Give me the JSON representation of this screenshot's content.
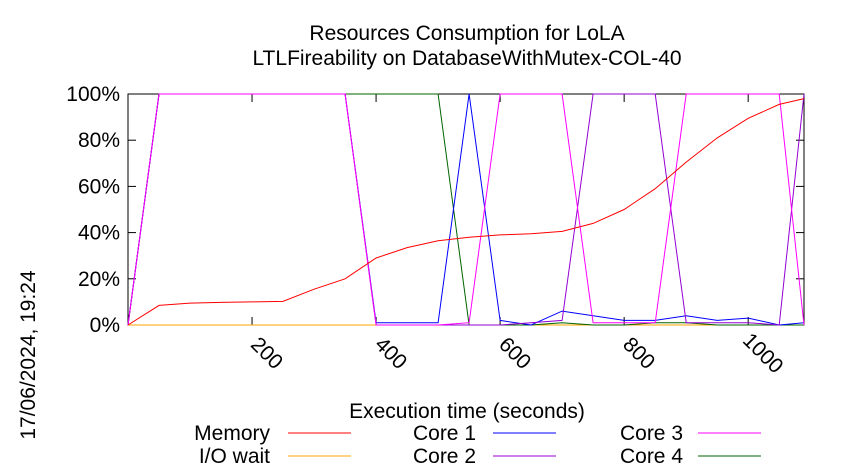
{
  "chart_data": {
    "type": "line",
    "title": "Resources Consumption for LoLA",
    "subtitle": "LTLFireability on DatabaseWithMutex-COL-40",
    "xlabel": "Execution time (seconds)",
    "ylabel": "",
    "side_label": "17/06/2024, 19:24",
    "xlim": [
      0,
      1090
    ],
    "ylim": [
      0,
      100
    ],
    "x_ticks": [
      200,
      400,
      600,
      800,
      1000
    ],
    "x_tick_labels": [
      "200",
      "400",
      "600",
      "800",
      "1000"
    ],
    "y_ticks": [
      0,
      20,
      40,
      60,
      80,
      100
    ],
    "y_tick_labels": [
      "0%",
      "20%",
      "40%",
      "60%",
      "80%",
      "100%"
    ],
    "grid": false,
    "legend_position": "bottom",
    "series": [
      {
        "name": "Memory",
        "color": "#ff0000",
        "points": [
          [
            0,
            0
          ],
          [
            50,
            8.5
          ],
          [
            100,
            9.5
          ],
          [
            150,
            9.8
          ],
          [
            200,
            10
          ],
          [
            250,
            10.2
          ],
          [
            300,
            15.5
          ],
          [
            350,
            20
          ],
          [
            400,
            29
          ],
          [
            450,
            33.5
          ],
          [
            500,
            36.5
          ],
          [
            550,
            38
          ],
          [
            600,
            39
          ],
          [
            650,
            39.5
          ],
          [
            700,
            40.5
          ],
          [
            750,
            44
          ],
          [
            800,
            50
          ],
          [
            850,
            59
          ],
          [
            900,
            70.5
          ],
          [
            950,
            81
          ],
          [
            1000,
            89.5
          ],
          [
            1050,
            95.5
          ],
          [
            1090,
            98
          ]
        ]
      },
      {
        "name": "I/O wait",
        "color": "#ffa500",
        "points": [
          [
            0,
            0
          ],
          [
            1090,
            0
          ]
        ]
      },
      {
        "name": "Core 1",
        "color": "#0000ff",
        "points": [
          [
            0,
            0
          ],
          [
            50,
            100
          ],
          [
            100,
            100
          ],
          [
            150,
            100
          ],
          [
            200,
            100
          ],
          [
            250,
            100
          ],
          [
            300,
            100
          ],
          [
            350,
            100
          ],
          [
            400,
            1
          ],
          [
            450,
            1
          ],
          [
            500,
            1
          ],
          [
            550,
            100
          ],
          [
            600,
            2
          ],
          [
            650,
            0
          ],
          [
            700,
            6
          ],
          [
            750,
            4
          ],
          [
            800,
            2
          ],
          [
            850,
            2
          ],
          [
            900,
            4
          ],
          [
            950,
            2
          ],
          [
            1000,
            3
          ],
          [
            1050,
            0
          ],
          [
            1090,
            1
          ]
        ]
      },
      {
        "name": "Core 2",
        "color": "#9400d3",
        "points": [
          [
            0,
            0
          ],
          [
            50,
            100
          ],
          [
            100,
            100
          ],
          [
            150,
            100
          ],
          [
            200,
            100
          ],
          [
            250,
            100
          ],
          [
            300,
            100
          ],
          [
            350,
            100
          ],
          [
            400,
            0
          ],
          [
            450,
            0
          ],
          [
            500,
            0
          ],
          [
            550,
            0
          ],
          [
            600,
            0
          ],
          [
            650,
            1
          ],
          [
            700,
            2
          ],
          [
            750,
            100
          ],
          [
            800,
            100
          ],
          [
            850,
            100
          ],
          [
            900,
            1
          ],
          [
            950,
            1
          ],
          [
            1000,
            1
          ],
          [
            1050,
            0
          ],
          [
            1090,
            100
          ]
        ]
      },
      {
        "name": "Core 3",
        "color": "#ff00ff",
        "points": [
          [
            0,
            0
          ],
          [
            50,
            100
          ],
          [
            100,
            100
          ],
          [
            150,
            100
          ],
          [
            200,
            100
          ],
          [
            250,
            100
          ],
          [
            300,
            100
          ],
          [
            350,
            100
          ],
          [
            400,
            0
          ],
          [
            450,
            0
          ],
          [
            500,
            0
          ],
          [
            550,
            1
          ],
          [
            600,
            100
          ],
          [
            650,
            100
          ],
          [
            700,
            100
          ],
          [
            750,
            1
          ],
          [
            800,
            1
          ],
          [
            850,
            1
          ],
          [
            900,
            100
          ],
          [
            950,
            100
          ],
          [
            1000,
            100
          ],
          [
            1050,
            100
          ],
          [
            1090,
            0
          ]
        ]
      },
      {
        "name": "Core 4",
        "color": "#006400",
        "points": [
          [
            0,
            0
          ],
          [
            50,
            100
          ],
          [
            100,
            100
          ],
          [
            150,
            100
          ],
          [
            200,
            100
          ],
          [
            250,
            100
          ],
          [
            300,
            100
          ],
          [
            350,
            100
          ],
          [
            400,
            100
          ],
          [
            450,
            100
          ],
          [
            500,
            100
          ],
          [
            550,
            0
          ],
          [
            600,
            0
          ],
          [
            650,
            0
          ],
          [
            700,
            1
          ],
          [
            750,
            0
          ],
          [
            800,
            0
          ],
          [
            850,
            1
          ],
          [
            900,
            1
          ],
          [
            950,
            0
          ],
          [
            1000,
            0
          ],
          [
            1050,
            0
          ],
          [
            1090,
            0
          ]
        ]
      }
    ]
  }
}
